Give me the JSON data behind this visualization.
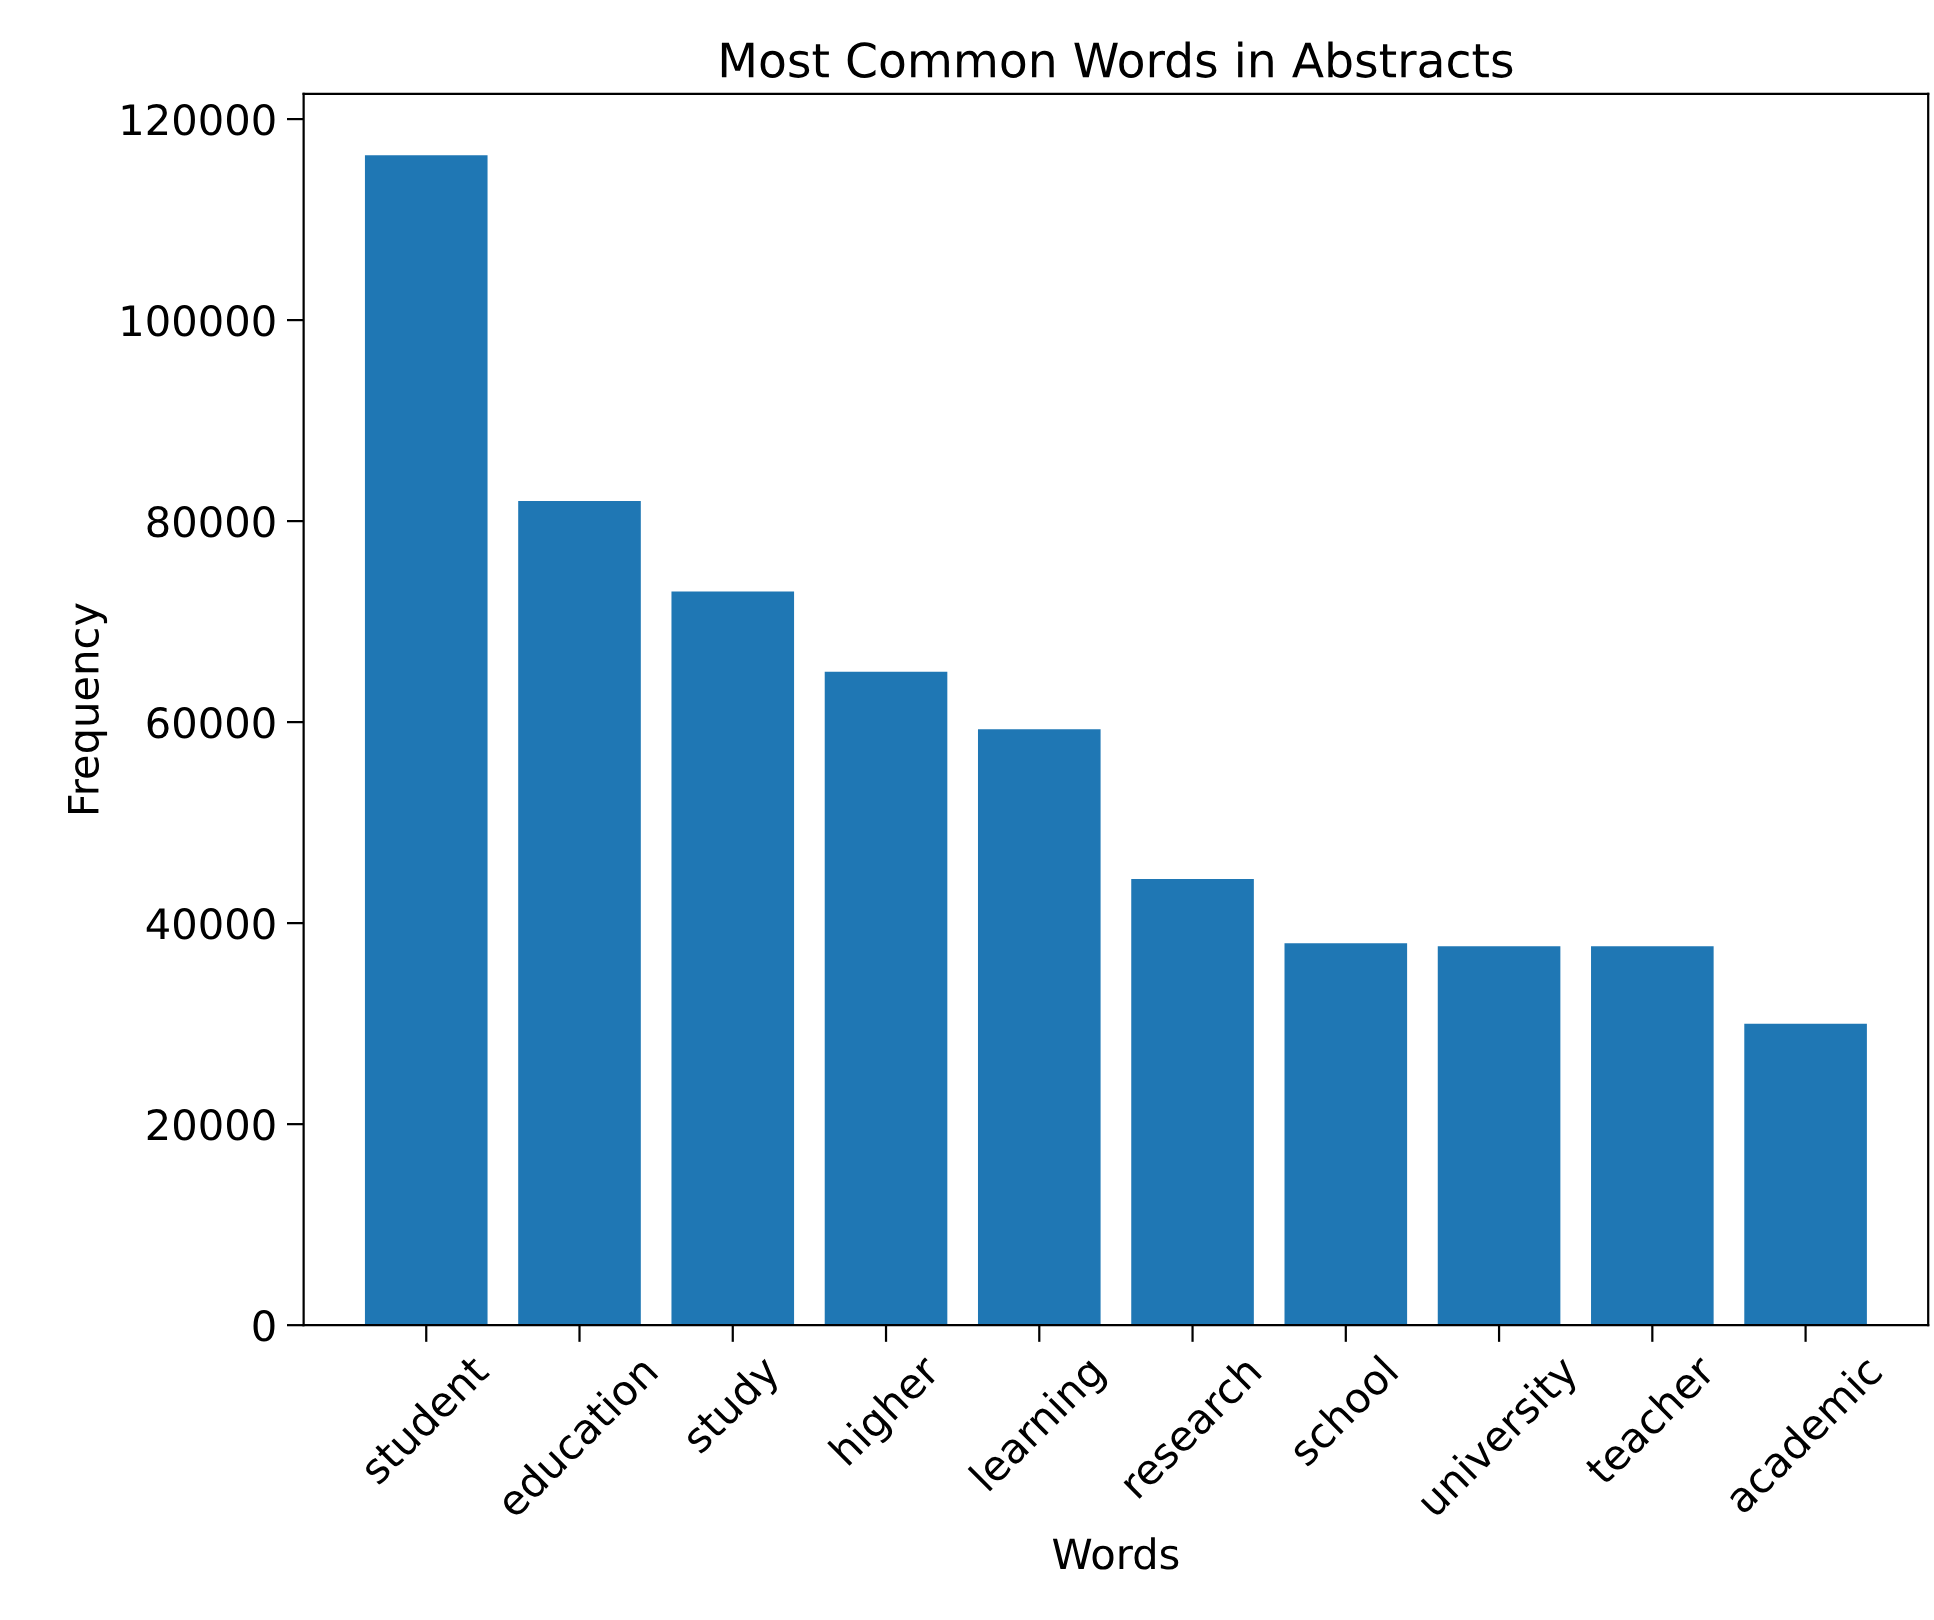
{
  "chart_data": {
    "type": "bar",
    "title": "Most Common Words in Abstracts",
    "xlabel": "Words",
    "ylabel": "Frequency",
    "categories": [
      "student",
      "education",
      "study",
      "higher",
      "learning",
      "research",
      "school",
      "university",
      "teacher",
      "academic"
    ],
    "values": [
      116400,
      82000,
      73000,
      65000,
      59300,
      44400,
      38000,
      37700,
      37700,
      30000
    ],
    "color": "#1f77b4",
    "ylim": [
      0,
      122500
    ],
    "yticks": [
      0,
      20000,
      40000,
      60000,
      80000,
      100000,
      120000
    ],
    "grid": false
  }
}
